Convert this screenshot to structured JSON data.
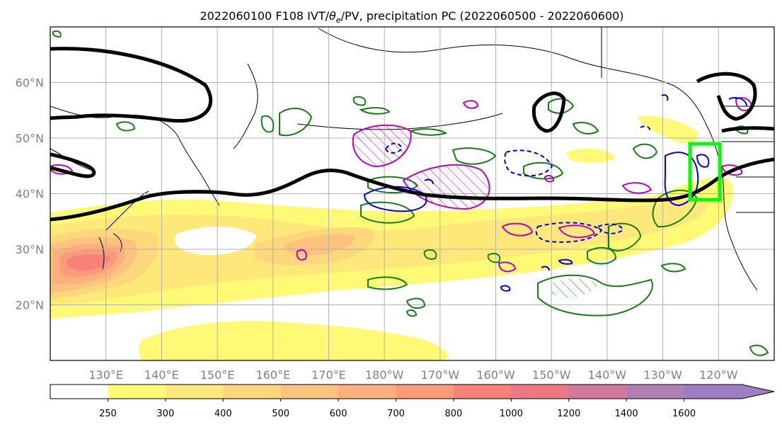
{
  "title": {
    "run": "2022060100",
    "forecast_hour": "F108",
    "field_prefix": "IVT/",
    "theta_symbol": "θ",
    "theta_sub": "e",
    "field_suffix": "/PV, precipitation PC (2022060500 - 2022060600)"
  },
  "map": {
    "projection": "PlateCarree",
    "lon_range_east": [
      120,
      250
    ],
    "lat_range": [
      10,
      70
    ],
    "lon_tick_labels": [
      "130°E",
      "140°E",
      "150°E",
      "160°E",
      "170°E",
      "180°W",
      "170°W",
      "160°W",
      "150°W",
      "140°W",
      "130°W",
      "120°W"
    ],
    "lon_ticks_east": [
      130,
      140,
      150,
      160,
      170,
      180,
      190,
      200,
      210,
      220,
      230,
      240
    ],
    "lat_tick_labels": [
      "20°N",
      "30°N",
      "40°N",
      "50°N",
      "60°N"
    ],
    "lat_ticks": [
      20,
      30,
      40,
      50,
      60
    ],
    "grid": true,
    "target_box": {
      "lon_east": [
        235.5,
        240.5
      ],
      "lat": [
        39,
        49
      ],
      "color": "#00ff00"
    }
  },
  "colorbar": {
    "levels": [
      "250",
      "300",
      "400",
      "500",
      "600",
      "700",
      "800",
      "1000",
      "1200",
      "1400",
      "1600"
    ],
    "colors": [
      "#ffffff",
      "#fffa75",
      "#fde879",
      "#fdd77c",
      "#fdc27d",
      "#fdaf7e",
      "#fc9a7c",
      "#f8827a",
      "#eb7885",
      "#d17a9b",
      "#b17fb4",
      "#9f7dc5"
    ],
    "extend": "max"
  },
  "colors": {
    "jet_contour": "#000000",
    "green_contour": "#148014",
    "magenta_contour": "#c000c0",
    "blue_contour": "#0000ee"
  }
}
